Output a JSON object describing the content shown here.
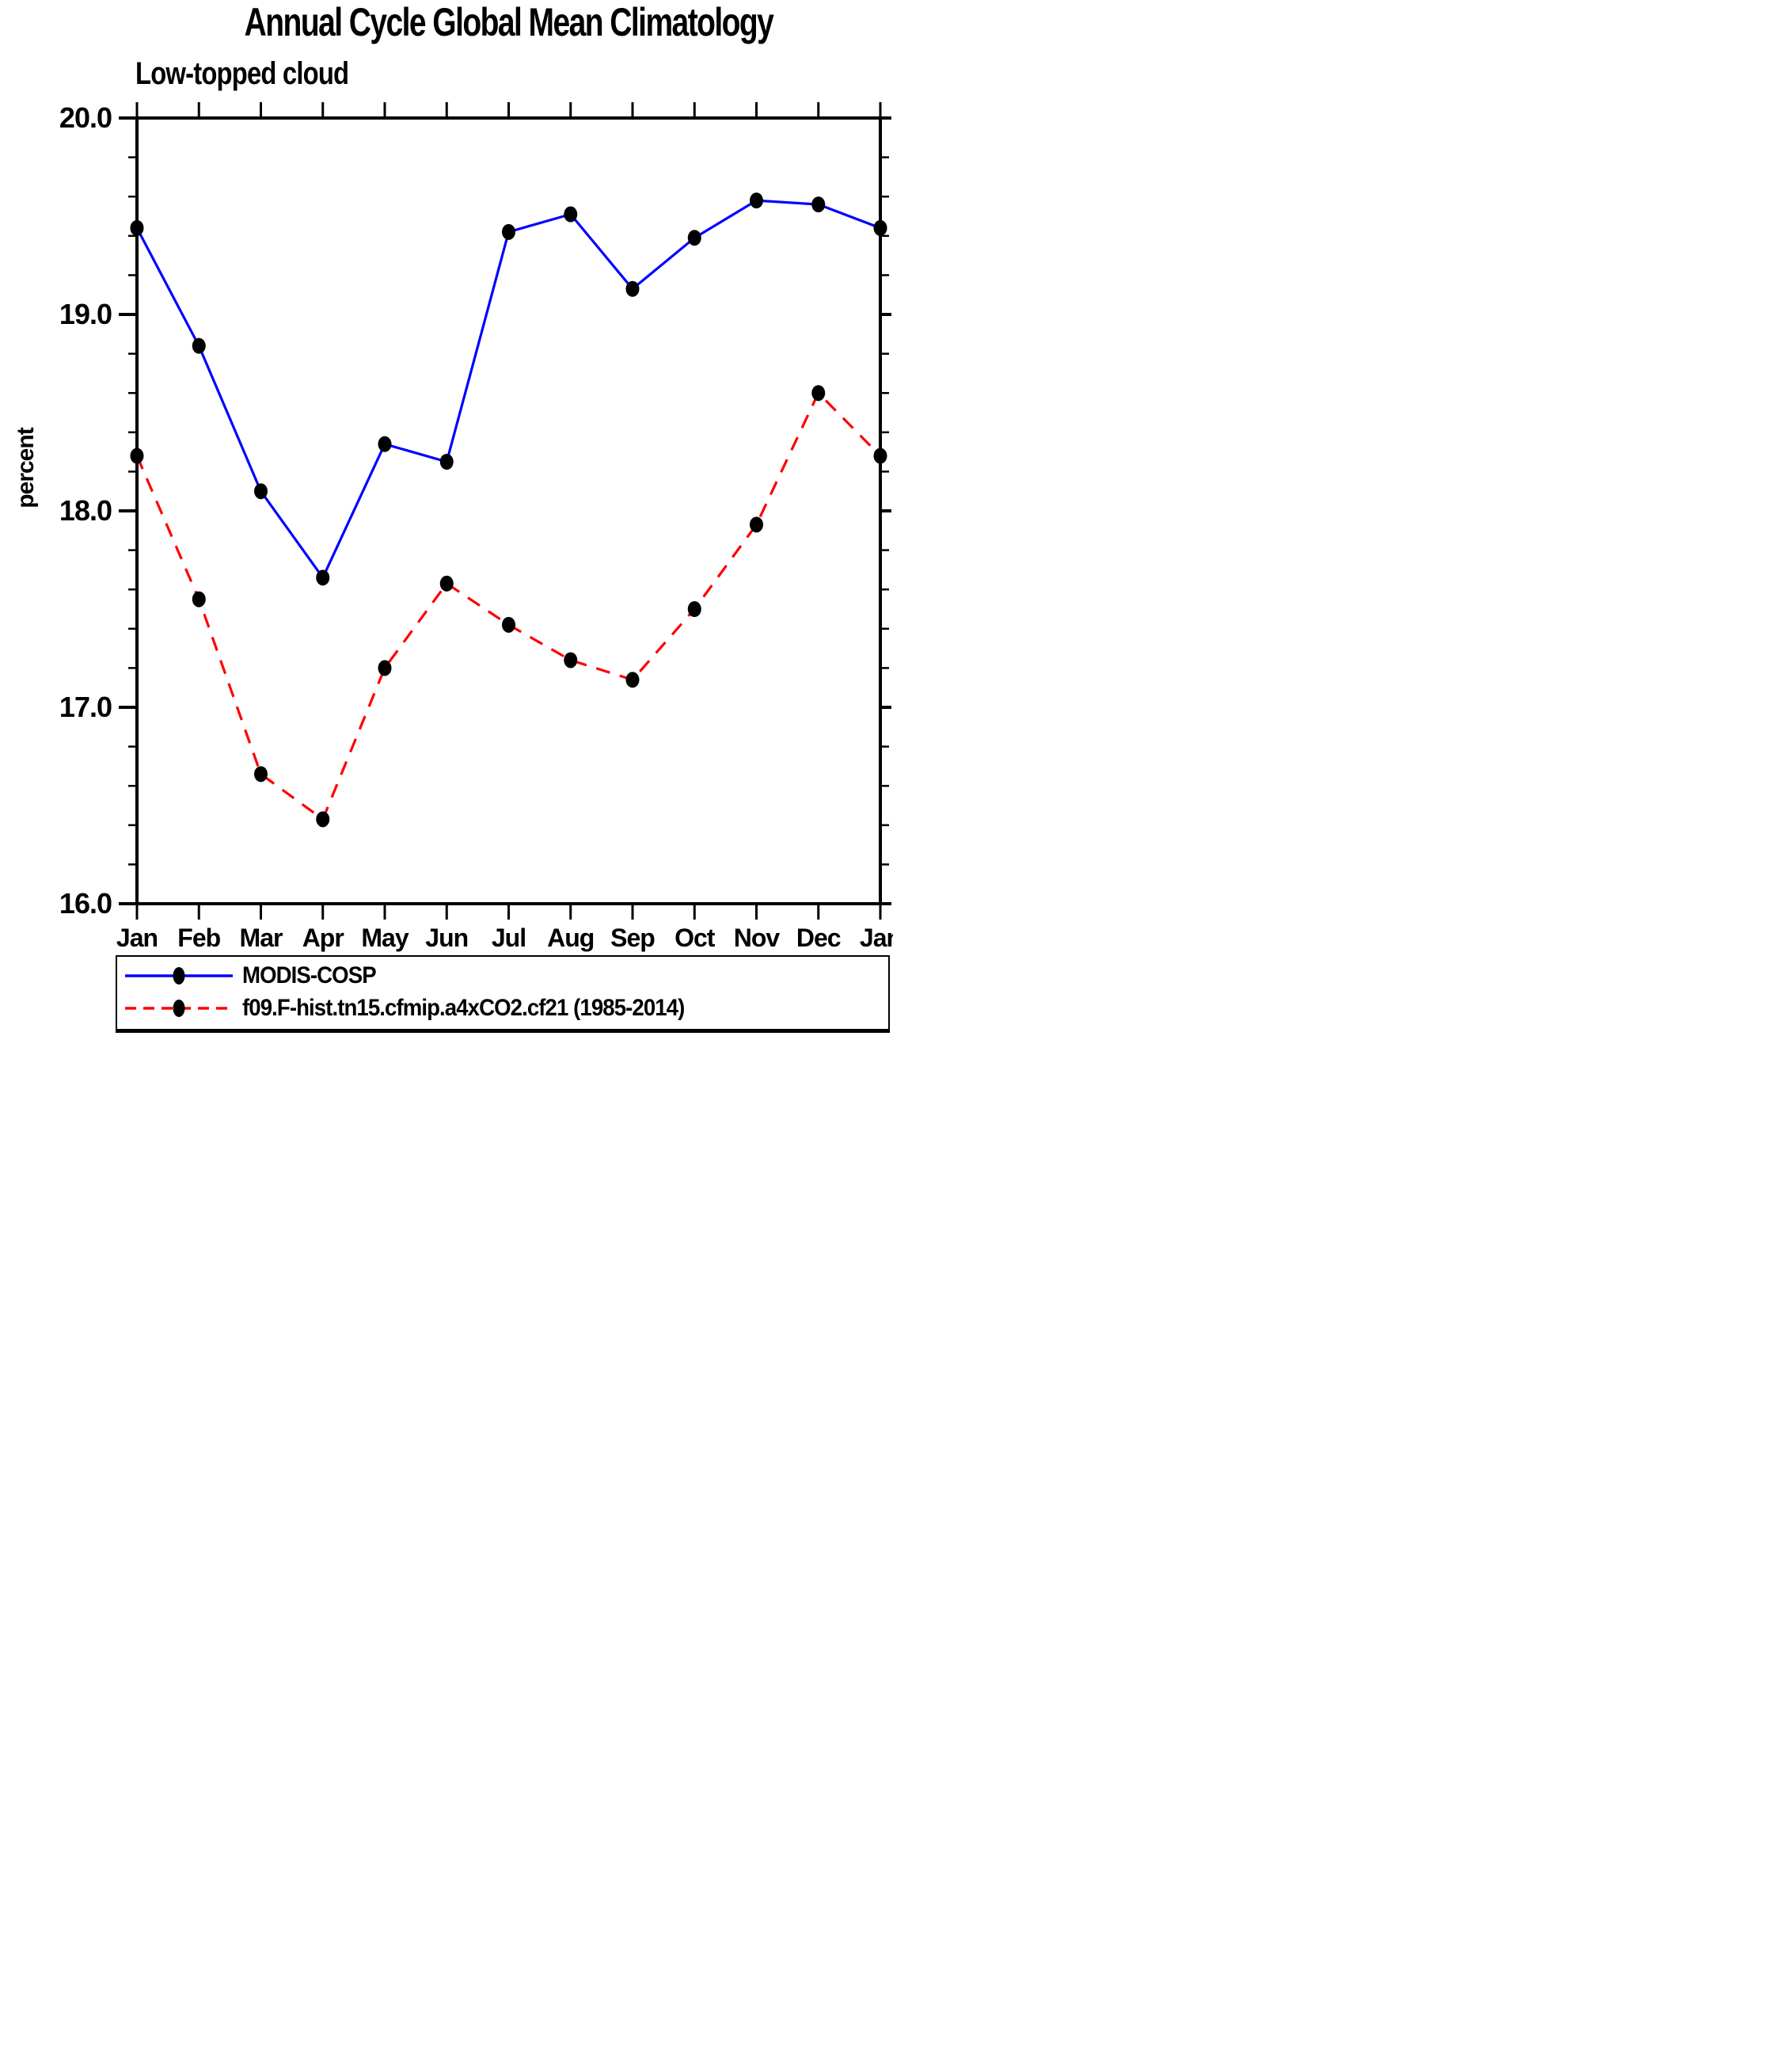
{
  "page": {
    "background": "#ffffff",
    "frame_color": "#000000"
  },
  "chart_data": {
    "type": "line",
    "title": "Annual Cycle Global Mean Climatology",
    "subtitle": "Low-topped cloud",
    "ylabel": "percent",
    "xlabel": "",
    "ylim": [
      16.0,
      20.0
    ],
    "ytick_values": [
      20.0,
      19.0,
      18.0,
      17.0,
      16.0
    ],
    "ytick_labels": [
      "20.0",
      "19.0",
      "18.0",
      "17.0",
      "16.0"
    ],
    "ytick_minor_step": 0.2,
    "grid": false,
    "legend_position": "bottom",
    "categories": [
      "Jan",
      "Feb",
      "Mar",
      "Apr",
      "May",
      "Jun",
      "Jul",
      "Aug",
      "Sep",
      "Oct",
      "Nov",
      "Dec",
      "Jan"
    ],
    "series": [
      {
        "name": "MODIS-COSP",
        "color": "#0000ff",
        "line_style": "solid",
        "marker": "filled-circle",
        "marker_color": "#000000",
        "values": [
          19.44,
          18.84,
          18.1,
          17.66,
          18.34,
          18.25,
          19.42,
          19.51,
          19.13,
          19.39,
          19.58,
          19.56,
          19.44
        ]
      },
      {
        "name": "f09.F-hist.tn15.cfmip.a4xCO2.cf21 (1985-2014)",
        "color": "#ff0000",
        "line_style": "dashed",
        "marker": "filled-circle",
        "marker_color": "#000000",
        "values": [
          18.28,
          17.55,
          16.66,
          16.43,
          17.2,
          17.63,
          17.42,
          17.24,
          17.14,
          17.5,
          17.93,
          18.6,
          18.28
        ]
      }
    ]
  }
}
